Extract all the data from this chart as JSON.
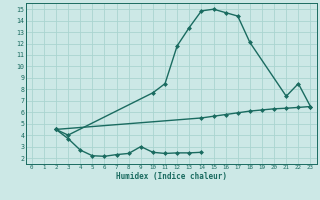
{
  "xlabel": "Humidex (Indice chaleur)",
  "xlim": [
    -0.5,
    23.5
  ],
  "ylim": [
    1.5,
    15.5
  ],
  "xticks": [
    0,
    1,
    2,
    3,
    4,
    5,
    6,
    7,
    8,
    9,
    10,
    11,
    12,
    13,
    14,
    15,
    16,
    17,
    18,
    19,
    20,
    21,
    22,
    23
  ],
  "yticks": [
    2,
    3,
    4,
    5,
    6,
    7,
    8,
    9,
    10,
    11,
    12,
    13,
    14,
    15
  ],
  "bg_color": "#cce8e6",
  "line_color": "#1a6b60",
  "grid_color": "#aad4d0",
  "curve1_x": [
    2,
    3,
    10,
    11,
    12,
    13,
    14,
    15,
    16,
    17,
    18,
    21,
    22,
    23
  ],
  "curve1_y": [
    4.5,
    4.0,
    7.7,
    8.5,
    11.8,
    13.4,
    14.85,
    15.0,
    14.7,
    14.4,
    12.1,
    7.4,
    8.5,
    6.5
  ],
  "curve2_x": [
    2,
    14,
    15,
    16,
    17,
    18,
    19,
    20,
    21,
    22,
    23
  ],
  "curve2_y": [
    4.5,
    5.5,
    5.65,
    5.8,
    5.95,
    6.1,
    6.2,
    6.3,
    6.35,
    6.42,
    6.5
  ],
  "curve3_x": [
    2,
    3,
    4,
    5,
    6,
    7,
    8,
    9,
    10,
    11,
    12,
    13,
    14
  ],
  "curve3_y": [
    4.5,
    3.7,
    2.7,
    2.2,
    2.15,
    2.3,
    2.4,
    3.0,
    2.5,
    2.4,
    2.45,
    2.45,
    2.5
  ],
  "marker": "D",
  "markersize": 2.5,
  "linewidth": 1.0
}
